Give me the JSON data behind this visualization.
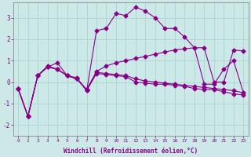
{
  "xlabel": "Windchill (Refroidissement éolien,°C)",
  "bg_color": "#cce9e8",
  "line_color": "#880088",
  "grid_color": "#aed8d6",
  "xlim": [
    -0.5,
    23.5
  ],
  "ylim": [
    -2.5,
    3.7
  ],
  "xticks": [
    0,
    1,
    2,
    3,
    4,
    5,
    6,
    7,
    8,
    9,
    10,
    11,
    12,
    13,
    14,
    15,
    16,
    17,
    18,
    19,
    20,
    21,
    22,
    23
  ],
  "yticks": [
    -2,
    -1,
    0,
    1,
    2,
    3
  ],
  "series1_y": [
    -0.3,
    -1.6,
    0.3,
    0.7,
    0.9,
    0.3,
    0.2,
    -0.4,
    2.4,
    2.5,
    3.2,
    3.1,
    3.5,
    3.3,
    3.0,
    2.5,
    2.5,
    2.1,
    1.6,
    -0.1,
    -0.1,
    0.6,
    1.0,
    -0.5
  ],
  "series2_y": [
    -0.3,
    -1.6,
    0.3,
    0.75,
    0.6,
    0.3,
    0.15,
    -0.35,
    0.5,
    0.75,
    0.9,
    1.0,
    1.1,
    1.2,
    1.3,
    1.4,
    1.5,
    1.55,
    1.6,
    1.6,
    0.0,
    0.0,
    1.5,
    1.45
  ],
  "series3_y": [
    -0.3,
    -1.6,
    0.3,
    0.7,
    0.6,
    0.3,
    0.15,
    -0.4,
    0.4,
    0.35,
    0.3,
    0.25,
    0.0,
    -0.05,
    -0.1,
    -0.1,
    -0.15,
    -0.2,
    -0.3,
    -0.35,
    -0.35,
    -0.45,
    -0.55,
    -0.6
  ],
  "series4_y": [
    -0.3,
    -1.6,
    0.3,
    0.7,
    0.6,
    0.3,
    0.15,
    -0.35,
    0.45,
    0.4,
    0.35,
    0.3,
    0.15,
    0.05,
    0.0,
    -0.05,
    -0.1,
    -0.15,
    -0.2,
    -0.25,
    -0.3,
    -0.35,
    -0.4,
    -0.5
  ]
}
